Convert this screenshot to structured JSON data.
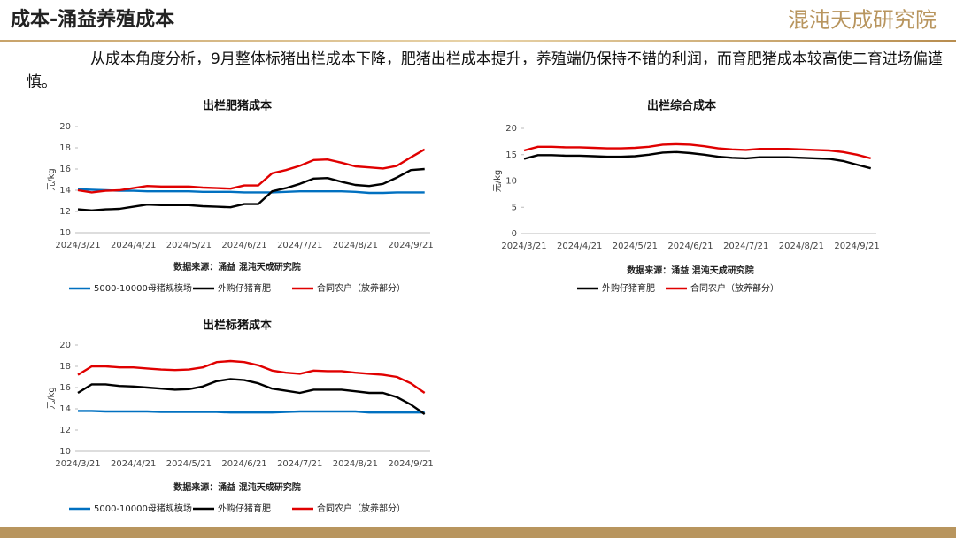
{
  "header": {
    "title": "成本-涌益养殖成本",
    "logo": "混沌天成研究院"
  },
  "paragraph": "从成本角度分析，9月整体标猪出栏成本下降，肥猪出栏成本提升，养殖端仍保持不错的利润，而育肥猪成本较高使二育进场偏谨慎。",
  "chart_data": [
    {
      "type": "line",
      "title": "出栏肥猪成本",
      "y_label": "元/kg",
      "source": "数据来源：涌益 混沌天成研究院",
      "categories": [
        "2024/3/21",
        null,
        null,
        null,
        "2024/4/21",
        null,
        null,
        null,
        "2024/5/21",
        null,
        null,
        null,
        "2024/6/21",
        null,
        null,
        null,
        "2024/7/21",
        null,
        null,
        null,
        "2024/8/21",
        null,
        null,
        null,
        "2024/9/21",
        null
      ],
      "ylim": [
        10,
        20
      ],
      "yticks": [
        10,
        12,
        14,
        16,
        18,
        20
      ],
      "series": [
        {
          "name": "5000-10000母猪规模场",
          "color": "#0070c0",
          "values": [
            14.1,
            14.05,
            14.0,
            13.95,
            13.95,
            13.9,
            13.9,
            13.9,
            13.9,
            13.85,
            13.85,
            13.85,
            13.8,
            13.8,
            13.8,
            13.85,
            13.9,
            13.9,
            13.9,
            13.9,
            13.85,
            13.75,
            13.75,
            13.8,
            13.8,
            13.8
          ]
        },
        {
          "name": "外购仔猪育肥",
          "color": "#000000",
          "values": [
            12.2,
            12.1,
            12.2,
            12.25,
            12.45,
            12.65,
            12.6,
            12.6,
            12.6,
            12.5,
            12.45,
            12.4,
            12.7,
            12.7,
            13.9,
            14.2,
            14.6,
            15.1,
            15.15,
            14.8,
            14.5,
            14.4,
            14.6,
            15.2,
            15.9,
            16.0
          ]
        },
        {
          "name": "合同农户（放养部分）",
          "color": "#e00000",
          "values": [
            14.0,
            13.8,
            13.95,
            14.0,
            14.2,
            14.4,
            14.35,
            14.35,
            14.35,
            14.25,
            14.2,
            14.15,
            14.45,
            14.45,
            15.6,
            15.9,
            16.3,
            16.85,
            16.9,
            16.6,
            16.25,
            16.15,
            16.05,
            16.3,
            17.1,
            17.85
          ]
        }
      ]
    },
    {
      "type": "line",
      "title": "出栏综合成本",
      "y_label": "元/kg",
      "source": "数据来源：涌益 混沌天成研究院",
      "categories": [
        "2024/3/21",
        null,
        null,
        null,
        "2024/4/21",
        null,
        null,
        null,
        "2024/5/21",
        null,
        null,
        null,
        "2024/6/21",
        null,
        null,
        null,
        "2024/7/21",
        null,
        null,
        null,
        "2024/8/21",
        null,
        null,
        null,
        "2024/9/21",
        null
      ],
      "ylim": [
        0,
        20
      ],
      "yticks": [
        0,
        5,
        10,
        15,
        20
      ],
      "series": [
        {
          "name": "外购仔猪育肥",
          "color": "#000000",
          "values": [
            14.2,
            14.9,
            14.9,
            14.8,
            14.8,
            14.7,
            14.6,
            14.6,
            14.7,
            15.0,
            15.4,
            15.5,
            15.3,
            15.0,
            14.6,
            14.4,
            14.3,
            14.5,
            14.5,
            14.5,
            14.4,
            14.3,
            14.2,
            13.8,
            13.1,
            12.4
          ]
        },
        {
          "name": "合同农户（放养部分）",
          "color": "#e00000",
          "values": [
            15.8,
            16.5,
            16.5,
            16.4,
            16.4,
            16.3,
            16.2,
            16.2,
            16.3,
            16.5,
            16.9,
            17.0,
            16.9,
            16.6,
            16.2,
            16.0,
            15.9,
            16.1,
            16.1,
            16.1,
            16.0,
            15.9,
            15.8,
            15.5,
            15.0,
            14.3
          ]
        }
      ]
    },
    {
      "type": "line",
      "title": "出栏标猪成本",
      "y_label": "元/kg",
      "source": "数据来源：涌益 混沌天成研究院",
      "categories": [
        "2024/3/21",
        null,
        null,
        null,
        "2024/4/21",
        null,
        null,
        null,
        "2024/5/21",
        null,
        null,
        null,
        "2024/6/21",
        null,
        null,
        null,
        "2024/7/21",
        null,
        null,
        null,
        "2024/8/21",
        null,
        null,
        null,
        "2024/9/21",
        null
      ],
      "ylim": [
        10,
        20
      ],
      "yticks": [
        10,
        12,
        14,
        16,
        18,
        20
      ],
      "series": [
        {
          "name": "5000-10000母猪规模场",
          "color": "#0070c0",
          "values": [
            13.8,
            13.8,
            13.75,
            13.75,
            13.75,
            13.75,
            13.7,
            13.7,
            13.7,
            13.7,
            13.7,
            13.65,
            13.65,
            13.65,
            13.65,
            13.7,
            13.75,
            13.75,
            13.75,
            13.75,
            13.75,
            13.65,
            13.65,
            13.65,
            13.65,
            13.65
          ]
        },
        {
          "name": "外购仔猪育肥",
          "color": "#000000",
          "values": [
            15.5,
            16.3,
            16.3,
            16.15,
            16.1,
            16.0,
            15.9,
            15.8,
            15.85,
            16.1,
            16.6,
            16.8,
            16.7,
            16.4,
            15.9,
            15.7,
            15.5,
            15.8,
            15.8,
            15.8,
            15.65,
            15.5,
            15.5,
            15.1,
            14.4,
            13.5
          ]
        },
        {
          "name": "合同农户（放养部分）",
          "color": "#e00000",
          "values": [
            17.2,
            18.0,
            18.0,
            17.9,
            17.9,
            17.8,
            17.7,
            17.65,
            17.7,
            17.9,
            18.4,
            18.5,
            18.4,
            18.1,
            17.6,
            17.4,
            17.3,
            17.6,
            17.55,
            17.55,
            17.4,
            17.3,
            17.2,
            17.0,
            16.4,
            15.5
          ]
        }
      ]
    }
  ]
}
